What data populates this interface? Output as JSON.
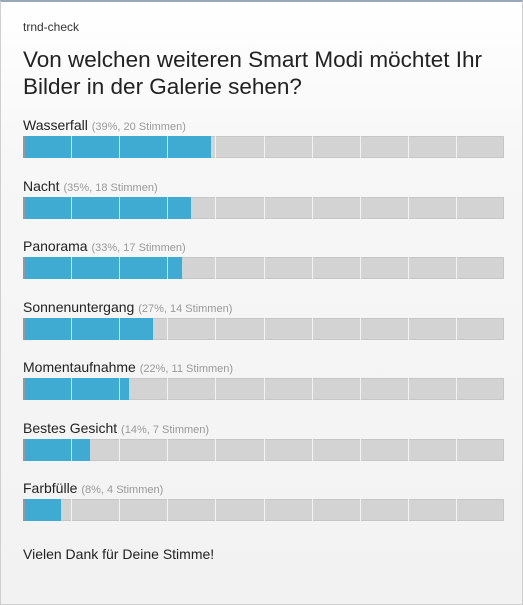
{
  "brand": "trnd-check",
  "question": "Von welchen weiteren Smart Modi möchtet Ihr Bilder in der Galerie sehen?",
  "options": [
    {
      "label": "Wasserfall",
      "stats": "(39%, 20 Stimmen)",
      "percent": 39
    },
    {
      "label": "Nacht",
      "stats": "(35%, 18 Stimmen)",
      "percent": 35
    },
    {
      "label": "Panorama",
      "stats": "(33%, 17 Stimmen)",
      "percent": 33
    },
    {
      "label": "Sonnenuntergang",
      "stats": "(27%, 14 Stimmen)",
      "percent": 27
    },
    {
      "label": "Momentaufnahme",
      "stats": "(22%, 11 Stimmen)",
      "percent": 22
    },
    {
      "label": "Bestes Gesicht",
      "stats": "(14%, 7 Stimmen)",
      "percent": 14
    },
    {
      "label": "Farbfülle",
      "stats": "(8%, 4 Stimmen)",
      "percent": 8
    }
  ],
  "thanks": "Vielen Dank für Deine Stimme!",
  "colors": {
    "bar_fill": "#3fabd3",
    "bar_track": "#d3d3d3"
  }
}
